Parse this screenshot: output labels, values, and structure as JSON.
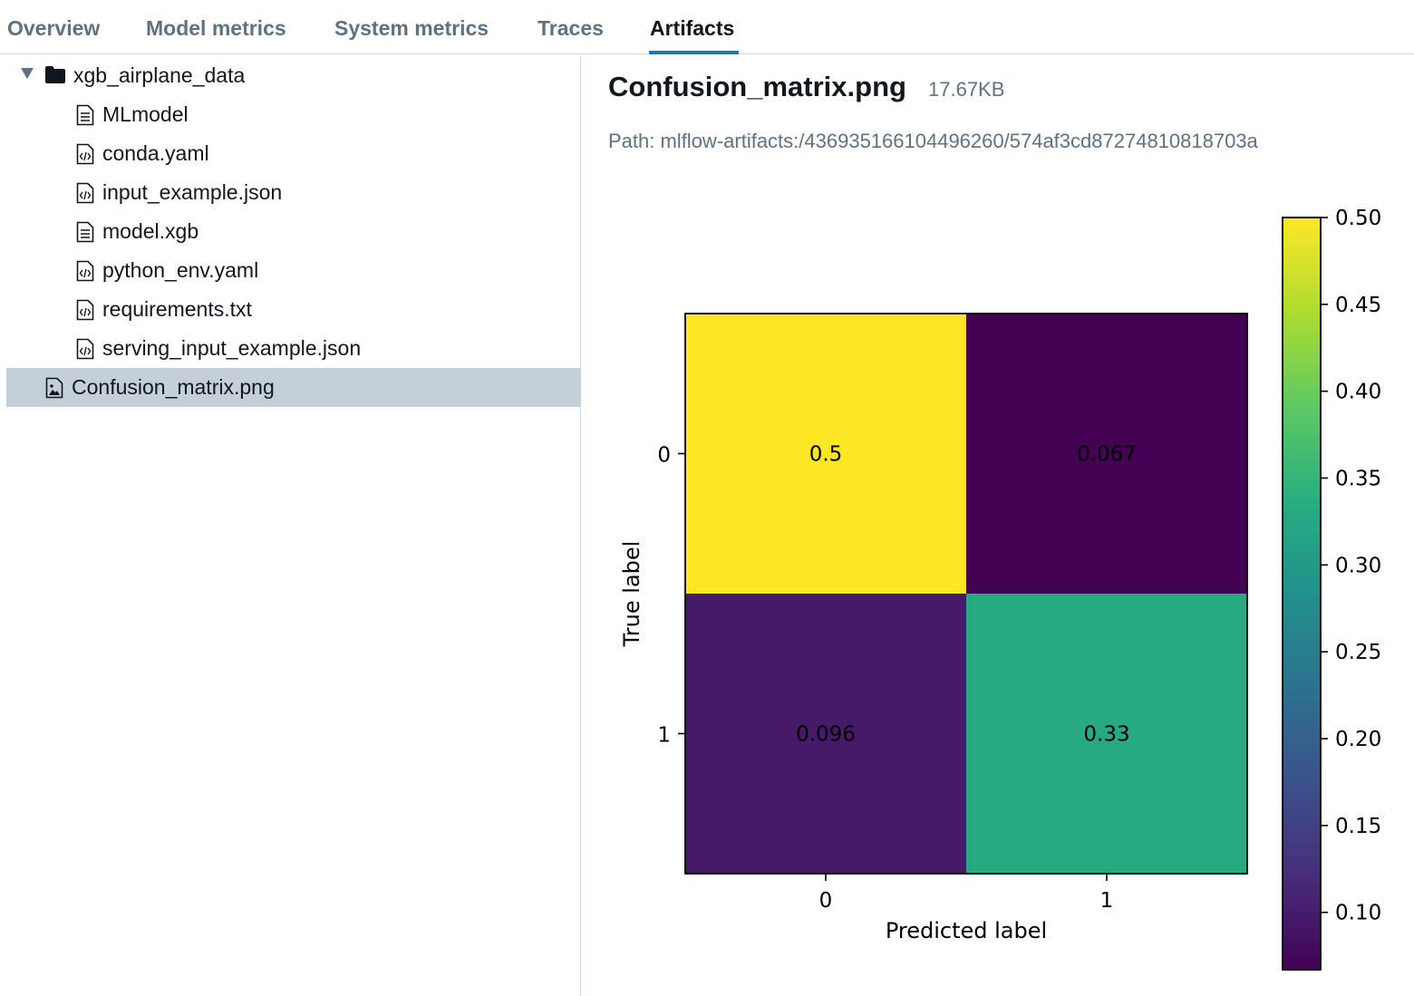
{
  "tabs": [
    {
      "label": "Overview",
      "active": false
    },
    {
      "label": "Model metrics",
      "active": false
    },
    {
      "label": "System metrics",
      "active": false
    },
    {
      "label": "Traces",
      "active": false
    },
    {
      "label": "Artifacts",
      "active": true
    }
  ],
  "tree": {
    "folder": {
      "name": "xgb_airplane_data",
      "icon": "folder-icon",
      "expanded": true
    },
    "children": [
      {
        "name": "MLmodel",
        "icon": "text-file-icon"
      },
      {
        "name": "conda.yaml",
        "icon": "code-file-icon"
      },
      {
        "name": "input_example.json",
        "icon": "code-file-icon"
      },
      {
        "name": "model.xgb",
        "icon": "text-file-icon"
      },
      {
        "name": "python_env.yaml",
        "icon": "code-file-icon"
      },
      {
        "name": "requirements.txt",
        "icon": "code-file-icon"
      },
      {
        "name": "serving_input_example.json",
        "icon": "code-file-icon"
      }
    ],
    "root_files": [
      {
        "name": "Confusion_matrix.png",
        "icon": "image-file-icon",
        "selected": true
      }
    ]
  },
  "preview": {
    "filename": "Confusion_matrix.png",
    "size": "17.67KB",
    "path": "Path: mlflow-artifacts:/436935166104496260/574af3cd87274810818703a"
  },
  "colors": {
    "accent": "#2272b4",
    "selected_row": "#c4cfd9",
    "muted_text": "#5f7281"
  },
  "chart_data": {
    "type": "heatmap",
    "title": "",
    "xlabel": "Predicted label",
    "ylabel": "True label",
    "x_categories": [
      "0",
      "1"
    ],
    "y_categories": [
      "0",
      "1"
    ],
    "values": [
      [
        0.5,
        0.067
      ],
      [
        0.096,
        0.33
      ]
    ],
    "cell_labels": [
      [
        "0.5",
        "0.067"
      ],
      [
        "0.096",
        "0.33"
      ]
    ],
    "colormap": "viridis",
    "colorbar": {
      "range": [
        0.067,
        0.5
      ],
      "ticks": [
        0.5,
        0.45,
        0.4,
        0.35,
        0.3,
        0.25,
        0.2,
        0.15,
        0.1
      ],
      "tick_labels": [
        "0.50",
        "0.45",
        "0.40",
        "0.35",
        "0.30",
        "0.25",
        "0.20",
        "0.15",
        "0.10"
      ]
    }
  }
}
